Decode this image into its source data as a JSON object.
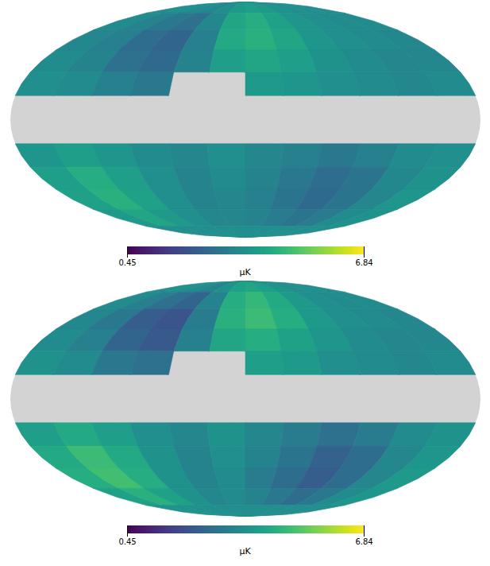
{
  "chart_data": {
    "type": "map",
    "color": "viridis",
    "lon_edges": [
      180,
      150,
      120,
      90,
      60,
      30,
      0,
      -30,
      -60,
      -90,
      -120,
      -150,
      -180
    ],
    "lat_edges": [
      90,
      75,
      60,
      45,
      30,
      15,
      0,
      -15,
      -30,
      -45,
      -60,
      -75,
      -90
    ],
    "colorbar": {
      "range": [
        0.45,
        6.84
      ],
      "ticks": [
        0.45,
        6.84
      ],
      "label": "μK"
    },
    "maps": [
      {
        "cells": [
          [
            3.6,
            3.6,
            3.5,
            3.4,
            3.6,
            3.9,
            4.0,
            3.9,
            3.7,
            3.6,
            3.6,
            3.6
          ],
          [
            3.5,
            3.3,
            3.0,
            2.8,
            3.4,
            4.2,
            4.4,
            4.1,
            3.8,
            3.6,
            3.5,
            3.5
          ],
          [
            3.4,
            3.2,
            2.7,
            2.5,
            3.2,
            4.3,
            4.5,
            4.2,
            3.8,
            3.6,
            3.5,
            3.4
          ],
          [
            3.5,
            3.3,
            2.8,
            2.6,
            3.3,
            4.0,
            4.2,
            4.0,
            3.7,
            3.5,
            3.4,
            3.4
          ],
          [
            3.6,
            3.5,
            3.2,
            3.0,
            null,
            null,
            3.9,
            3.8,
            3.6,
            3.5,
            3.4,
            3.5
          ],
          [
            null,
            null,
            null,
            null,
            null,
            null,
            null,
            null,
            null,
            null,
            null,
            null
          ],
          [
            null,
            null,
            null,
            null,
            null,
            null,
            null,
            null,
            null,
            null,
            null,
            null
          ],
          [
            3.8,
            4.0,
            3.8,
            3.5,
            3.4,
            3.6,
            3.4,
            3.2,
            3.0,
            3.2,
            3.5,
            3.6
          ],
          [
            4.0,
            4.4,
            4.0,
            3.6,
            3.3,
            3.5,
            3.3,
            3.0,
            2.7,
            2.9,
            3.4,
            3.7
          ],
          [
            4.1,
            4.5,
            4.1,
            3.6,
            3.3,
            3.4,
            3.2,
            2.9,
            2.6,
            2.9,
            3.4,
            3.8
          ],
          [
            3.9,
            4.2,
            3.9,
            3.6,
            3.4,
            3.4,
            3.3,
            3.1,
            2.9,
            3.1,
            3.5,
            3.7
          ],
          [
            3.6,
            3.6,
            3.6,
            3.6,
            3.6,
            3.6,
            3.6,
            3.6,
            3.6,
            3.6,
            3.6,
            3.6
          ]
        ]
      },
      {
        "cells": [
          [
            3.6,
            3.7,
            3.5,
            3.3,
            3.7,
            4.1,
            4.2,
            4.0,
            3.8,
            3.6,
            3.6,
            3.6
          ],
          [
            3.5,
            3.2,
            2.8,
            2.5,
            3.3,
            4.4,
            4.7,
            4.3,
            3.9,
            3.6,
            3.5,
            3.5
          ],
          [
            3.4,
            3.0,
            2.3,
            2.1,
            3.1,
            4.5,
            4.8,
            4.4,
            3.9,
            3.6,
            3.5,
            3.4
          ],
          [
            3.5,
            3.2,
            2.5,
            2.2,
            3.2,
            4.2,
            4.4,
            4.1,
            3.8,
            3.5,
            3.4,
            3.4
          ],
          [
            3.7,
            3.5,
            3.0,
            2.8,
            null,
            null,
            4.0,
            3.9,
            3.6,
            3.5,
            3.4,
            3.5
          ],
          [
            null,
            null,
            null,
            null,
            null,
            null,
            null,
            null,
            null,
            null,
            null,
            null
          ],
          [
            null,
            null,
            null,
            null,
            null,
            null,
            null,
            null,
            null,
            null,
            null,
            null
          ],
          [
            4.0,
            4.3,
            4.0,
            3.6,
            3.4,
            3.7,
            3.4,
            3.1,
            2.8,
            3.1,
            3.5,
            3.7
          ],
          [
            4.3,
            4.8,
            4.3,
            3.7,
            3.3,
            3.6,
            3.3,
            2.9,
            2.4,
            2.7,
            3.4,
            3.8
          ],
          [
            4.4,
            4.9,
            4.4,
            3.7,
            3.3,
            3.5,
            3.1,
            2.7,
            2.3,
            2.7,
            3.4,
            3.9
          ],
          [
            4.1,
            4.5,
            4.1,
            3.7,
            3.4,
            3.5,
            3.3,
            3.0,
            2.7,
            3.0,
            3.5,
            3.8
          ],
          [
            3.7,
            3.7,
            3.7,
            3.6,
            3.6,
            3.6,
            3.6,
            3.6,
            3.6,
            3.6,
            3.6,
            3.6
          ]
        ]
      }
    ]
  }
}
